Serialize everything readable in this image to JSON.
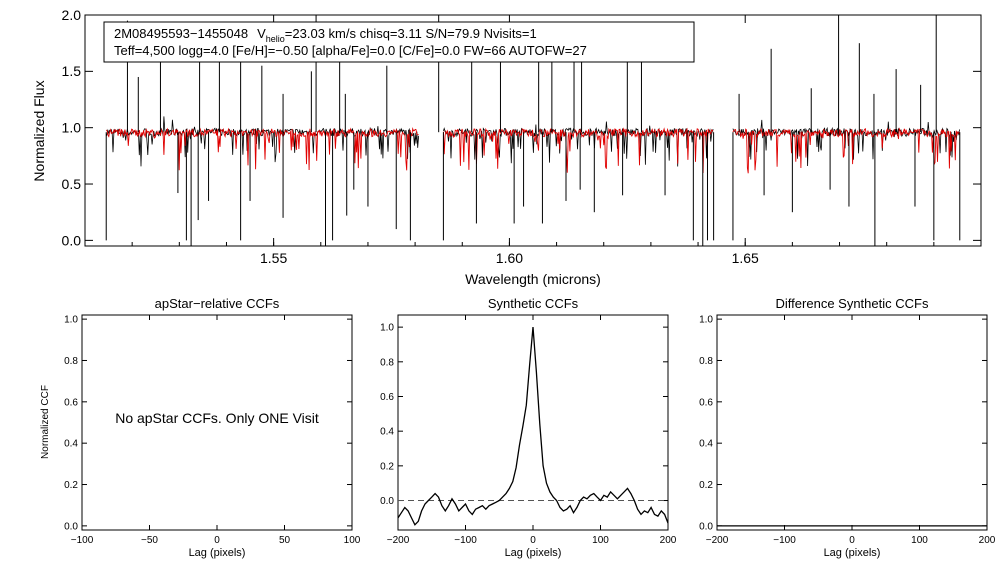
{
  "chart_data": [
    {
      "type": "line",
      "panel": "spectrum",
      "info_line1": {
        "star": "2M08495593−1455048",
        "v_prefix": "V",
        "v_sub": "helio",
        "v_rest": "=23.03 km/s  chisq=3.11  S/N=79.9  Nvisits=1"
      },
      "info_line2": "Teff=4,500 logg=4.0 [Fe/H]=−0.50 [alpha/Fe]=0.0 [C/Fe]=0.0 FW=66 AUTOFW=27",
      "xlabel": "Wavelength (microns)",
      "ylabel": "Normalized Flux",
      "xlim": [
        1.51,
        1.7
      ],
      "ylim": [
        -0.05,
        2.0
      ],
      "xticks": [
        1.55,
        1.6,
        1.65
      ],
      "xtick_labels": [
        "1.55",
        "1.60",
        "1.65"
      ],
      "yticks": [
        0.0,
        0.5,
        1.0,
        1.5,
        2.0
      ],
      "ytick_labels": [
        "0.0",
        "0.5",
        "1.0",
        "1.5",
        "2.0"
      ],
      "chips": [
        [
          1.5145,
          1.5808
        ],
        [
          1.586,
          1.6433
        ],
        [
          1.6474,
          1.6955
        ]
      ],
      "series": [
        {
          "color": "#000000",
          "continuum": 0.96
        },
        {
          "color": "#e00000",
          "continuum": 0.955
        }
      ],
      "spikes_up": [
        [
          1.519,
          1.95
        ],
        [
          1.5213,
          1.45
        ],
        [
          1.526,
          1.9
        ],
        [
          1.5343,
          1.8
        ],
        [
          1.5385,
          1.6
        ],
        [
          1.543,
          1.8
        ],
        [
          1.5475,
          1.55
        ],
        [
          1.552,
          1.3
        ],
        [
          1.558,
          1.5
        ],
        [
          1.559,
          2.0
        ],
        [
          1.564,
          1.75
        ],
        [
          1.5652,
          1.3
        ],
        [
          1.574,
          1.55
        ],
        [
          1.585,
          2.0
        ],
        [
          1.592,
          1.7
        ],
        [
          1.5981,
          1.6
        ],
        [
          1.6062,
          1.9
        ],
        [
          1.609,
          1.9
        ],
        [
          1.6137,
          1.78
        ],
        [
          1.6153,
          1.65
        ],
        [
          1.625,
          1.9
        ],
        [
          1.628,
          1.75
        ],
        [
          1.6487,
          1.3
        ],
        [
          1.6555,
          1.7
        ],
        [
          1.664,
          1.35
        ],
        [
          1.6698,
          2.0
        ],
        [
          1.6742,
          1.75
        ],
        [
          1.6773,
          1.3
        ],
        [
          1.682,
          1.52
        ],
        [
          1.6872,
          1.38
        ],
        [
          1.6905,
          2.0
        ]
      ],
      "spikes_down": [
        [
          1.5145,
          0.0
        ],
        [
          1.5297,
          0.42
        ],
        [
          1.5315,
          0.0
        ],
        [
          1.5325,
          -0.05
        ],
        [
          1.534,
          0.18
        ],
        [
          1.5362,
          0.35
        ],
        [
          1.543,
          0.0
        ],
        [
          1.545,
          0.35
        ],
        [
          1.552,
          0.2
        ],
        [
          1.561,
          -0.05
        ],
        [
          1.5625,
          0.0
        ],
        [
          1.5655,
          0.22
        ],
        [
          1.567,
          0.45
        ],
        [
          1.57,
          0.3
        ],
        [
          1.576,
          0.1
        ],
        [
          1.579,
          0.0
        ],
        [
          1.586,
          0.0
        ],
        [
          1.593,
          0.15
        ],
        [
          1.601,
          0.15
        ],
        [
          1.603,
          0.3
        ],
        [
          1.607,
          0.15
        ],
        [
          1.612,
          0.35
        ],
        [
          1.615,
          0.45
        ],
        [
          1.618,
          0.25
        ],
        [
          1.624,
          0.4
        ],
        [
          1.633,
          0.4
        ],
        [
          1.639,
          0.0
        ],
        [
          1.641,
          -0.05
        ],
        [
          1.642,
          0.0
        ],
        [
          1.6433,
          0.0
        ],
        [
          1.6474,
          0.0
        ],
        [
          1.654,
          0.4
        ],
        [
          1.66,
          0.25
        ],
        [
          1.668,
          0.45
        ],
        [
          1.672,
          0.3
        ],
        [
          1.6775,
          -0.05
        ],
        [
          1.686,
          0.3
        ],
        [
          1.69,
          0.0
        ],
        [
          1.6955,
          0.0
        ]
      ]
    },
    {
      "type": "line",
      "panel": "apstar-ccf",
      "title": "apStar−relative CCFs",
      "ylabel": "Normalized CCF",
      "xlabel": "Lag (pixels)",
      "xlim": [
        -100,
        100
      ],
      "ylim": [
        -0.02,
        1.02
      ],
      "xticks": [
        -100,
        -50,
        0,
        50,
        100
      ],
      "xtick_labels": [
        "−100",
        "−50",
        "0",
        "50",
        "100"
      ],
      "yticks": [
        0.0,
        0.2,
        0.4,
        0.6,
        0.8,
        1.0
      ],
      "ytick_labels": [
        "0.0",
        "0.2",
        "0.4",
        "0.6",
        "0.8",
        "1.0"
      ],
      "message": "No apStar CCFs.  Only ONE Visit"
    },
    {
      "type": "line",
      "panel": "synthetic-ccf",
      "title": "Synthetic CCFs",
      "xlabel": "Lag (pixels)",
      "xlim": [
        -200,
        200
      ],
      "ylim": [
        -0.17,
        1.07
      ],
      "xticks": [
        -200,
        -100,
        0,
        100,
        200
      ],
      "xtick_labels": [
        "−200",
        "−100",
        "0",
        "100",
        "200"
      ],
      "yticks": [
        0.0,
        0.2,
        0.4,
        0.6,
        0.8,
        1.0
      ],
      "ytick_labels": [
        "0.0",
        "0.2",
        "0.4",
        "0.6",
        "0.8",
        "1.0"
      ],
      "zero_line": 0.0,
      "x": [
        -200,
        -195,
        -190,
        -185,
        -180,
        -175,
        -170,
        -165,
        -160,
        -155,
        -150,
        -145,
        -140,
        -135,
        -130,
        -125,
        -120,
        -115,
        -110,
        -105,
        -100,
        -95,
        -90,
        -85,
        -80,
        -75,
        -70,
        -65,
        -60,
        -55,
        -50,
        -45,
        -40,
        -35,
        -30,
        -25,
        -20,
        -15,
        -10,
        -5,
        0,
        5,
        10,
        15,
        20,
        25,
        30,
        35,
        40,
        45,
        50,
        55,
        60,
        65,
        70,
        75,
        80,
        85,
        90,
        95,
        100,
        105,
        110,
        115,
        120,
        125,
        130,
        135,
        140,
        145,
        150,
        155,
        160,
        165,
        170,
        175,
        180,
        185,
        190,
        195,
        200
      ],
      "y": [
        -0.1,
        -0.07,
        -0.04,
        -0.06,
        -0.1,
        -0.14,
        -0.12,
        -0.06,
        -0.02,
        0.0,
        0.02,
        0.04,
        0.02,
        -0.03,
        -0.06,
        -0.03,
        0.01,
        -0.02,
        -0.06,
        -0.04,
        -0.02,
        -0.06,
        -0.08,
        -0.05,
        -0.04,
        -0.03,
        -0.05,
        -0.03,
        -0.02,
        -0.01,
        0.0,
        0.02,
        0.04,
        0.07,
        0.11,
        0.19,
        0.32,
        0.43,
        0.55,
        0.78,
        1.0,
        0.74,
        0.44,
        0.2,
        0.1,
        0.05,
        0.02,
        0.0,
        -0.04,
        -0.06,
        -0.05,
        -0.03,
        -0.07,
        -0.04,
        0.0,
        0.02,
        0.01,
        0.03,
        0.04,
        0.02,
        0.0,
        0.03,
        0.02,
        0.05,
        0.03,
        0.01,
        0.03,
        0.05,
        0.07,
        0.04,
        0.0,
        -0.05,
        -0.08,
        -0.06,
        -0.07,
        -0.04,
        -0.08,
        -0.09,
        -0.06,
        -0.08,
        -0.13
      ]
    },
    {
      "type": "line",
      "panel": "difference-ccf",
      "title": "Difference Synthetic CCFs",
      "xlabel": "Lag (pixels)",
      "xlim": [
        -200,
        200
      ],
      "ylim": [
        -0.02,
        1.02
      ],
      "xticks": [
        -200,
        -100,
        0,
        100,
        200
      ],
      "xtick_labels": [
        "−200",
        "−100",
        "0",
        "100",
        "200"
      ],
      "yticks": [
        0.0,
        0.2,
        0.4,
        0.6,
        0.8,
        1.0
      ],
      "ytick_labels": [
        "0.0",
        "0.2",
        "0.4",
        "0.6",
        "0.8",
        "1.0"
      ],
      "flat_value": 0.0
    }
  ]
}
